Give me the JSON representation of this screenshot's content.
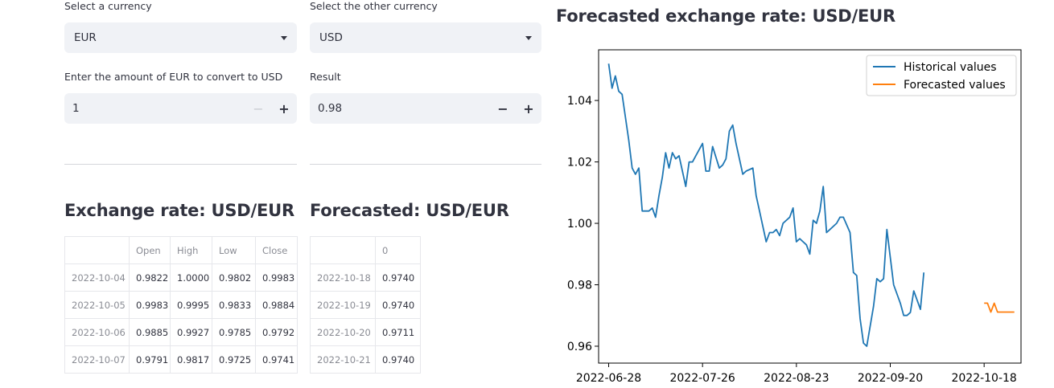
{
  "converter": {
    "currency_label": "Select a currency",
    "currency_value": "EUR",
    "other_label": "Select the other currency",
    "other_value": "USD",
    "amount_label": "Enter the amount of EUR to convert to USD",
    "amount_value": "1",
    "result_label": "Result",
    "result_value": "0.98",
    "minus": "−",
    "plus": "+"
  },
  "history_table": {
    "title": "Exchange rate: USD/EUR",
    "columns": [
      "",
      "Open",
      "High",
      "Low",
      "Close"
    ],
    "rows": [
      [
        "2022-10-04",
        "0.9822",
        "1.0000",
        "0.9802",
        "0.9983"
      ],
      [
        "2022-10-05",
        "0.9983",
        "0.9995",
        "0.9833",
        "0.9884"
      ],
      [
        "2022-10-06",
        "0.9885",
        "0.9927",
        "0.9785",
        "0.9792"
      ],
      [
        "2022-10-07",
        "0.9791",
        "0.9817",
        "0.9725",
        "0.9741"
      ]
    ]
  },
  "forecast_table": {
    "title": "Forecasted: USD/EUR",
    "columns": [
      "",
      "0"
    ],
    "rows": [
      [
        "2022-10-18",
        "0.9740"
      ],
      [
        "2022-10-19",
        "0.9740"
      ],
      [
        "2022-10-20",
        "0.9711"
      ],
      [
        "2022-10-21",
        "0.9740"
      ]
    ]
  },
  "chart_data": {
    "type": "line",
    "title": "Forecasted exchange rate: USD/EUR",
    "xlabel": "",
    "ylabel": "",
    "ylim": [
      0.9545,
      1.0565
    ],
    "xlim": [
      "2022-06-25",
      "2022-10-29"
    ],
    "yticks": [
      0.96,
      0.98,
      1.0,
      1.02,
      1.04
    ],
    "ytick_labels": [
      "0.96",
      "0.98",
      "1.00",
      "1.02",
      "1.04"
    ],
    "xticks": [
      "2022-06-28",
      "2022-07-26",
      "2022-08-23",
      "2022-09-20",
      "2022-10-18"
    ],
    "legend": "top-right",
    "grid": false,
    "series": [
      {
        "name": "Historical values",
        "color": "#1f77b4",
        "points": [
          [
            "2022-06-28",
            1.052
          ],
          [
            "2022-06-29",
            1.044
          ],
          [
            "2022-06-30",
            1.048
          ],
          [
            "2022-07-01",
            1.043
          ],
          [
            "2022-07-02",
            1.042
          ],
          [
            "2022-07-04",
            1.027
          ],
          [
            "2022-07-05",
            1.018
          ],
          [
            "2022-07-06",
            1.016
          ],
          [
            "2022-07-07",
            1.018
          ],
          [
            "2022-07-08",
            1.004
          ],
          [
            "2022-07-10",
            1.004
          ],
          [
            "2022-07-11",
            1.005
          ],
          [
            "2022-07-12",
            1.002
          ],
          [
            "2022-07-13",
            1.009
          ],
          [
            "2022-07-14",
            1.015
          ],
          [
            "2022-07-15",
            1.023
          ],
          [
            "2022-07-16",
            1.018
          ],
          [
            "2022-07-17",
            1.023
          ],
          [
            "2022-07-18",
            1.021
          ],
          [
            "2022-07-19",
            1.022
          ],
          [
            "2022-07-21",
            1.012
          ],
          [
            "2022-07-22",
            1.02
          ],
          [
            "2022-07-23",
            1.02
          ],
          [
            "2022-07-24",
            1.022
          ],
          [
            "2022-07-26",
            1.026
          ],
          [
            "2022-07-27",
            1.017
          ],
          [
            "2022-07-28",
            1.017
          ],
          [
            "2022-07-29",
            1.025
          ],
          [
            "2022-07-31",
            1.018
          ],
          [
            "2022-08-01",
            1.019
          ],
          [
            "2022-08-02",
            1.021
          ],
          [
            "2022-08-03",
            1.03
          ],
          [
            "2022-08-04",
            1.032
          ],
          [
            "2022-08-05",
            1.026
          ],
          [
            "2022-08-07",
            1.016
          ],
          [
            "2022-08-08",
            1.017
          ],
          [
            "2022-08-10",
            1.018
          ],
          [
            "2022-08-11",
            1.009
          ],
          [
            "2022-08-12",
            1.004
          ],
          [
            "2022-08-14",
            0.994
          ],
          [
            "2022-08-15",
            0.997
          ],
          [
            "2022-08-16",
            0.997
          ],
          [
            "2022-08-17",
            0.998
          ],
          [
            "2022-08-18",
            0.996
          ],
          [
            "2022-08-19",
            1.0
          ],
          [
            "2022-08-21",
            1.002
          ],
          [
            "2022-08-22",
            1.005
          ],
          [
            "2022-08-23",
            0.994
          ],
          [
            "2022-08-24",
            0.995
          ],
          [
            "2022-08-26",
            0.993
          ],
          [
            "2022-08-27",
            0.99
          ],
          [
            "2022-08-28",
            1.001
          ],
          [
            "2022-08-29",
            1.0
          ],
          [
            "2022-08-30",
            1.004
          ],
          [
            "2022-08-31",
            1.012
          ],
          [
            "2022-09-01",
            0.997
          ],
          [
            "2022-09-02",
            0.998
          ],
          [
            "2022-09-04",
            1.0
          ],
          [
            "2022-09-05",
            1.002
          ],
          [
            "2022-09-06",
            1.002
          ],
          [
            "2022-09-08",
            0.997
          ],
          [
            "2022-09-09",
            0.984
          ],
          [
            "2022-09-10",
            0.983
          ],
          [
            "2022-09-11",
            0.969
          ],
          [
            "2022-09-12",
            0.961
          ],
          [
            "2022-09-13",
            0.96
          ],
          [
            "2022-09-15",
            0.973
          ],
          [
            "2022-09-16",
            0.982
          ],
          [
            "2022-09-17",
            0.981
          ],
          [
            "2022-09-18",
            0.982
          ],
          [
            "2022-09-19",
            0.998
          ],
          [
            "2022-09-20",
            0.989
          ],
          [
            "2022-09-21",
            0.98
          ],
          [
            "2022-09-23",
            0.974
          ],
          [
            "2022-09-24",
            0.97
          ],
          [
            "2022-09-25",
            0.97
          ],
          [
            "2022-09-26",
            0.971
          ],
          [
            "2022-09-27",
            0.978
          ],
          [
            "2022-09-29",
            0.972
          ],
          [
            "2022-09-30",
            0.984
          ]
        ]
      },
      {
        "name": "Forecasted values",
        "color": "#ff7f0e",
        "points": [
          [
            "2022-10-18",
            0.974
          ],
          [
            "2022-10-19",
            0.974
          ],
          [
            "2022-10-20",
            0.9711
          ],
          [
            "2022-10-21",
            0.974
          ],
          [
            "2022-10-22",
            0.9711
          ],
          [
            "2022-10-23",
            0.9711
          ],
          [
            "2022-10-24",
            0.9711
          ],
          [
            "2022-10-25",
            0.9711
          ],
          [
            "2022-10-26",
            0.9711
          ],
          [
            "2022-10-27",
            0.9711
          ]
        ]
      }
    ]
  }
}
